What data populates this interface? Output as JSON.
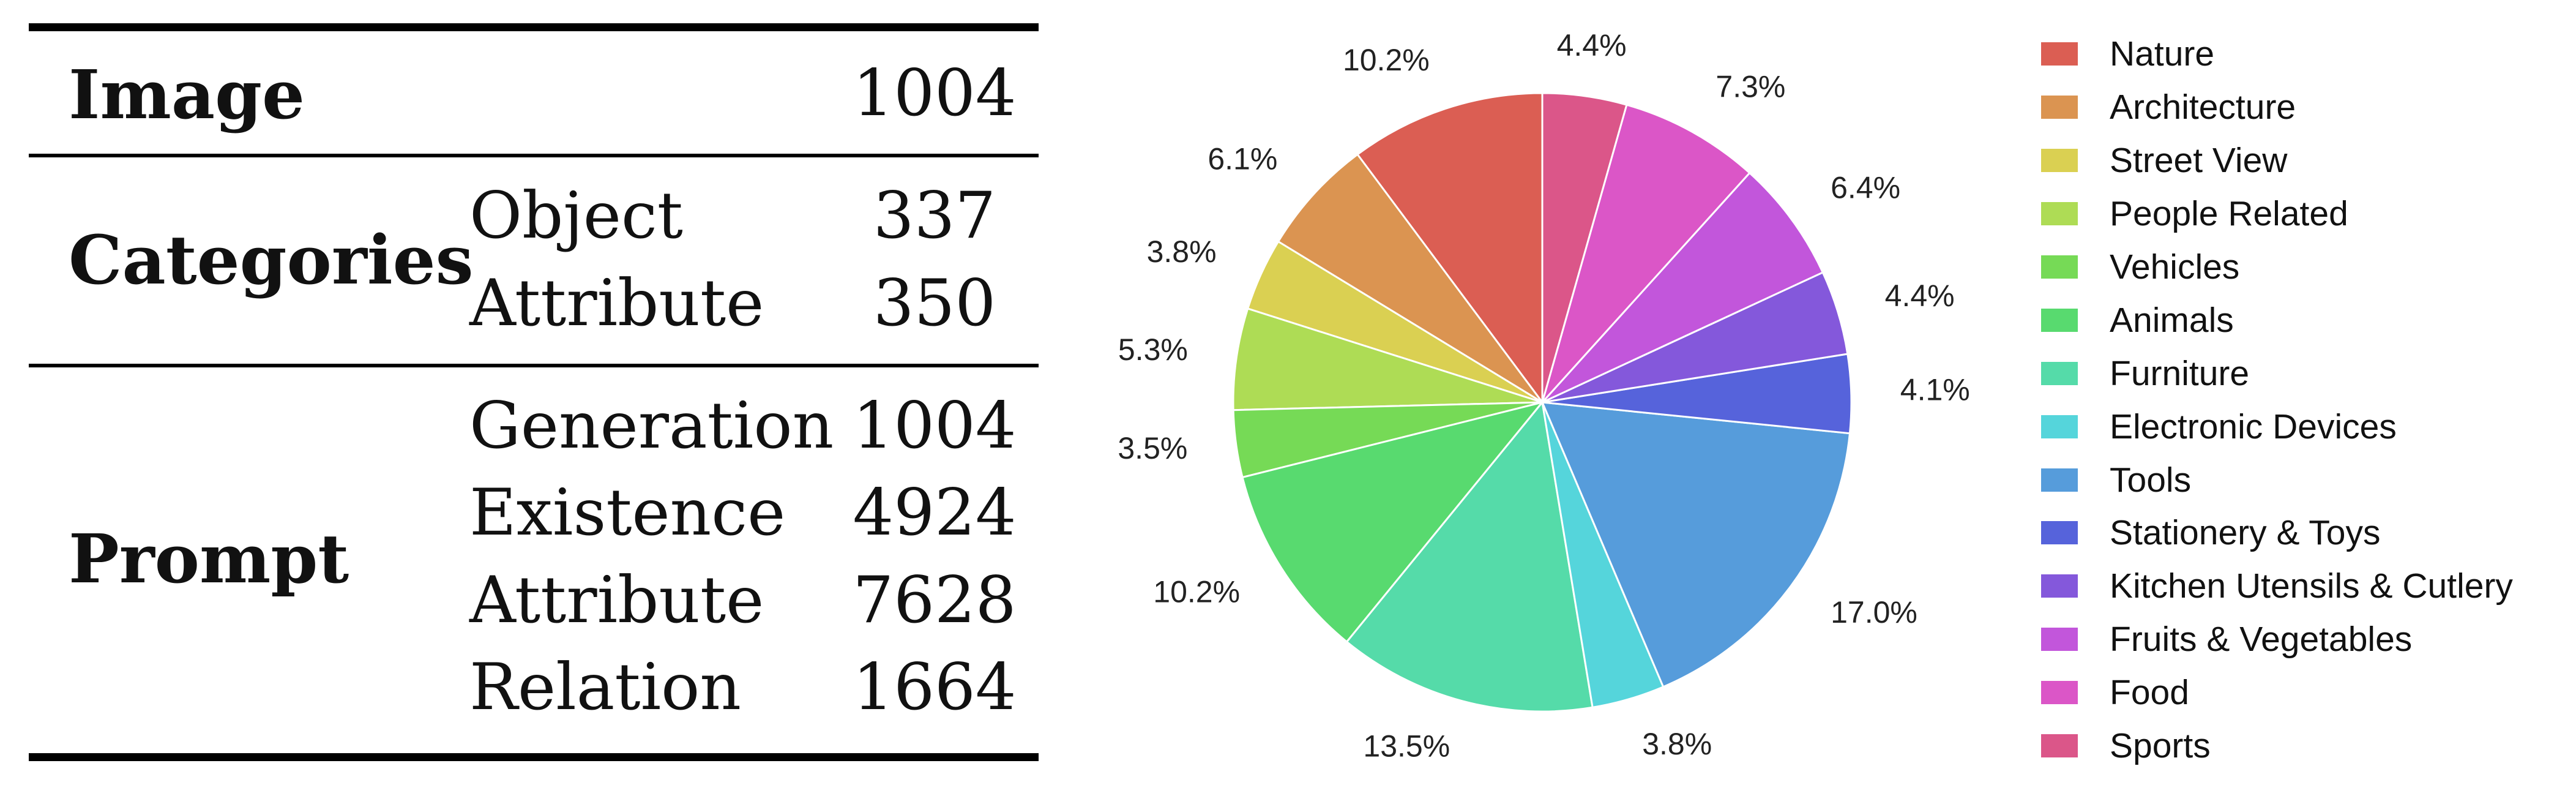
{
  "table": {
    "image": {
      "label": "Image",
      "count": "1004"
    },
    "categories": {
      "label": "Categories",
      "rows": [
        {
          "name": "Object",
          "count": "337"
        },
        {
          "name": "Attribute",
          "count": "350"
        }
      ]
    },
    "prompt": {
      "label": "Prompt",
      "rows": [
        {
          "name": "Generation",
          "count": "1004"
        },
        {
          "name": "Existence",
          "count": "4924"
        },
        {
          "name": "Attribute",
          "count": "7628"
        },
        {
          "name": "Relation",
          "count": "1664"
        }
      ]
    }
  },
  "chart_data": {
    "type": "pie",
    "title": "",
    "legend_position": "right",
    "start": "top, counter-clockwise",
    "slices": [
      {
        "label": "Nature",
        "value": 10.2,
        "display": "10.2%",
        "color": "#DB5E53"
      },
      {
        "label": "Architecture",
        "value": 6.1,
        "display": "6.1%",
        "color": "#DB9451"
      },
      {
        "label": "Street View",
        "value": 3.8,
        "display": "3.8%",
        "color": "#DAD052"
      },
      {
        "label": "People Related",
        "value": 5.3,
        "display": "5.3%",
        "color": "#AEDC55"
      },
      {
        "label": "Vehicles",
        "value": 3.5,
        "display": "3.5%",
        "color": "#76DA56"
      },
      {
        "label": "Animals",
        "value": 10.2,
        "display": "10.2%",
        "color": "#58DA6F"
      },
      {
        "label": "Furniture",
        "value": 13.5,
        "display": "13.5%",
        "color": "#55DBA9"
      },
      {
        "label": "Electronic Devices",
        "value": 3.8,
        "display": "3.8%",
        "color": "#55D5DB"
      },
      {
        "label": "Tools",
        "value": 17.0,
        "display": "17.0%",
        "color": "#569CDB"
      },
      {
        "label": "Stationery & Toys",
        "value": 4.1,
        "display": "4.1%",
        "color": "#5663DB"
      },
      {
        "label": "Kitchen Utensils & Cutlery",
        "value": 4.4,
        "display": "4.4%",
        "color": "#8458DB"
      },
      {
        "label": "Fruits & Vegetables",
        "value": 6.4,
        "display": "6.4%",
        "color": "#C256DB"
      },
      {
        "label": "Food",
        "value": 7.3,
        "display": "7.3%",
        "color": "#DB56C7"
      },
      {
        "label": "Sports",
        "value": 4.4,
        "display": "4.4%",
        "color": "#DB5689"
      }
    ]
  }
}
